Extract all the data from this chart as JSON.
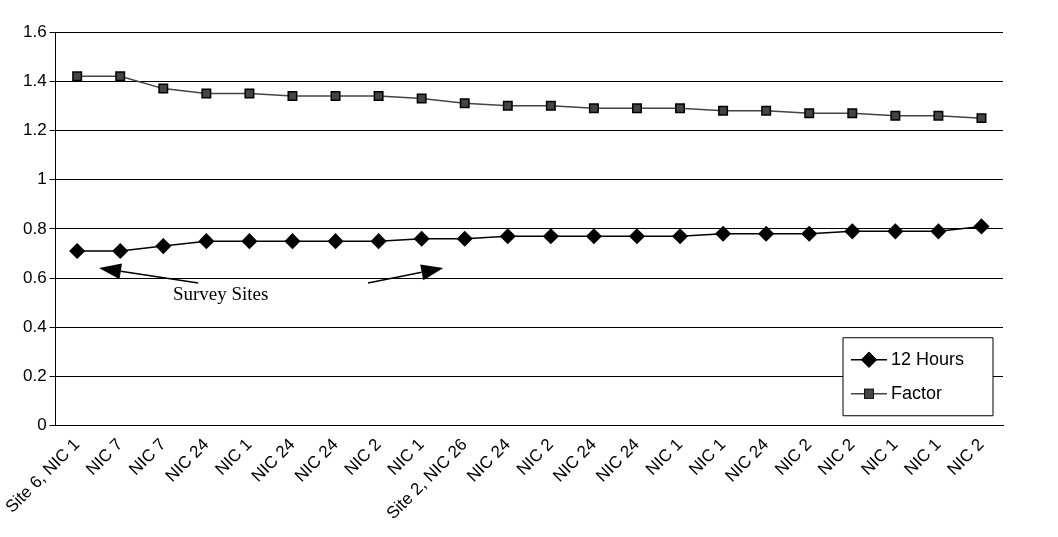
{
  "chart_data": {
    "type": "line",
    "categories": [
      "Site 6, NIC 1",
      "NIC 7",
      "NIC 7",
      "NIC 24",
      "NIC 1",
      "NIC 24",
      "NIC 24",
      "NIC 2",
      "NIC 1",
      "Site 2, NIC 26",
      "NIC 24",
      "NIC 2",
      "NIC 24",
      "NIC 24",
      "NIC 1",
      "NIC 1",
      "NIC 24",
      "NIC 2",
      "NIC 2",
      "NIC 1",
      "NIC 1",
      "NIC 2"
    ],
    "series": [
      {
        "name": "12 Hours",
        "color": "#000000",
        "marker": "diamond",
        "values": [
          0.71,
          0.71,
          0.73,
          0.75,
          0.75,
          0.75,
          0.75,
          0.75,
          0.76,
          0.76,
          0.77,
          0.77,
          0.77,
          0.77,
          0.77,
          0.78,
          0.78,
          0.78,
          0.79,
          0.79,
          0.79,
          0.81
        ]
      },
      {
        "name": "Factor",
        "color": "#444444",
        "marker": "square",
        "values": [
          1.42,
          1.42,
          1.37,
          1.35,
          1.35,
          1.34,
          1.34,
          1.34,
          1.33,
          1.31,
          1.3,
          1.3,
          1.29,
          1.29,
          1.29,
          1.28,
          1.28,
          1.27,
          1.27,
          1.26,
          1.26,
          1.25
        ]
      }
    ],
    "ylim": [
      0,
      1.6
    ],
    "yticks": [
      0,
      {
        "value": 0.2,
        "label": "0.2"
      },
      {
        "value": 0.4,
        "label": "0.4"
      },
      {
        "value": 0.6,
        "label": "0.6"
      },
      {
        "value": 0.8,
        "label": "0.8"
      },
      1,
      {
        "value": 1.2,
        "label": "1.2"
      },
      {
        "value": 1.4,
        "label": "1.4"
      },
      {
        "value": 1.6,
        "label": "1.6"
      }
    ],
    "grid": "y",
    "legend": "bottom right",
    "line_style": "solid",
    "annotations": [
      "Survey Sites"
    ]
  }
}
